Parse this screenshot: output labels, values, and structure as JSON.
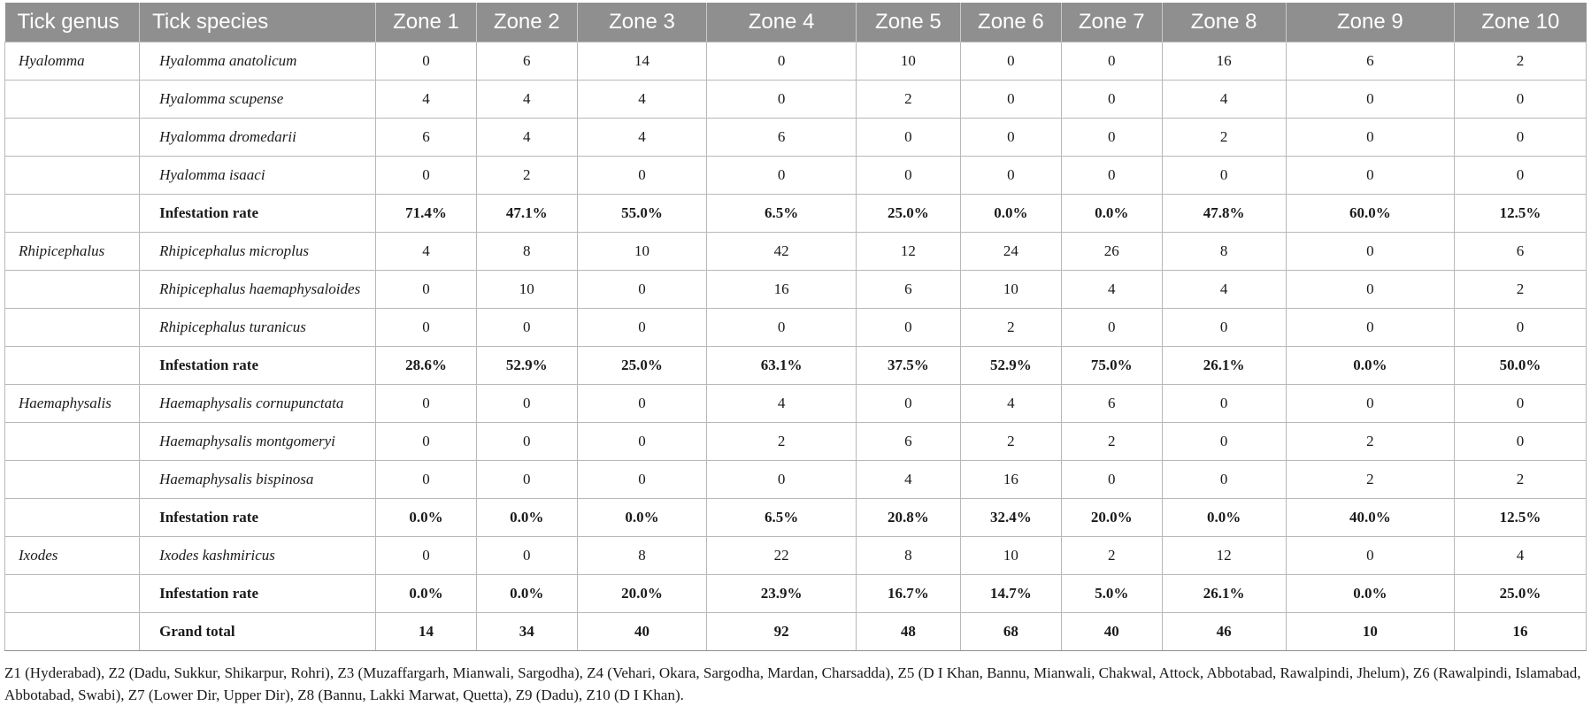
{
  "table": {
    "header": [
      "Tick genus",
      "Tick species",
      "Zone 1",
      "Zone 2",
      "Zone 3",
      "Zone 4",
      "Zone 5",
      "Zone 6",
      "Zone 7",
      "Zone 8",
      "Zone 9",
      "Zone 10"
    ],
    "rows": [
      {
        "genus": "Hyalomma",
        "species": "Hyalomma anatolicum",
        "type": "species",
        "values": [
          "0",
          "6",
          "14",
          "0",
          "10",
          "0",
          "0",
          "16",
          "6",
          "2"
        ]
      },
      {
        "genus": "",
        "species": "Hyalomma scupense",
        "type": "species",
        "values": [
          "4",
          "4",
          "4",
          "0",
          "2",
          "0",
          "0",
          "4",
          "0",
          "0"
        ]
      },
      {
        "genus": "",
        "species": "Hyalomma dromedarii",
        "type": "species",
        "values": [
          "6",
          "4",
          "4",
          "6",
          "0",
          "0",
          "0",
          "2",
          "0",
          "0"
        ]
      },
      {
        "genus": "",
        "species": "Hyalomma isaaci",
        "type": "species",
        "values": [
          "0",
          "2",
          "0",
          "0",
          "0",
          "0",
          "0",
          "0",
          "0",
          "0"
        ]
      },
      {
        "genus": "",
        "species": "Infestation rate",
        "type": "rate",
        "values": [
          "71.4%",
          "47.1%",
          "55.0%",
          "6.5%",
          "25.0%",
          "0.0%",
          "0.0%",
          "47.8%",
          "60.0%",
          "12.5%"
        ]
      },
      {
        "genus": "Rhipicephalus",
        "species": "Rhipicephalus microplus",
        "type": "species",
        "values": [
          "4",
          "8",
          "10",
          "42",
          "12",
          "24",
          "26",
          "8",
          "0",
          "6"
        ]
      },
      {
        "genus": "",
        "species": "Rhipicephalus haemaphysaloides",
        "type": "species",
        "values": [
          "0",
          "10",
          "0",
          "16",
          "6",
          "10",
          "4",
          "4",
          "0",
          "2"
        ]
      },
      {
        "genus": "",
        "species": "Rhipicephalus turanicus",
        "type": "species",
        "values": [
          "0",
          "0",
          "0",
          "0",
          "0",
          "2",
          "0",
          "0",
          "0",
          "0"
        ]
      },
      {
        "genus": "",
        "species": "Infestation rate",
        "type": "rate",
        "values": [
          "28.6%",
          "52.9%",
          "25.0%",
          "63.1%",
          "37.5%",
          "52.9%",
          "75.0%",
          "26.1%",
          "0.0%",
          "50.0%"
        ]
      },
      {
        "genus": "Haemaphysalis",
        "species": "Haemaphysalis cornupunctata",
        "type": "species",
        "values": [
          "0",
          "0",
          "0",
          "4",
          "0",
          "4",
          "6",
          "0",
          "0",
          "0"
        ]
      },
      {
        "genus": "",
        "species": "Haemaphysalis montgomeryi",
        "type": "species",
        "values": [
          "0",
          "0",
          "0",
          "2",
          "6",
          "2",
          "2",
          "0",
          "2",
          "0"
        ]
      },
      {
        "genus": "",
        "species": "Haemaphysalis bispinosa",
        "type": "species",
        "values": [
          "0",
          "0",
          "0",
          "0",
          "4",
          "16",
          "0",
          "0",
          "2",
          "2"
        ]
      },
      {
        "genus": "",
        "species": "Infestation rate",
        "type": "rate",
        "values": [
          "0.0%",
          "0.0%",
          "0.0%",
          "6.5%",
          "20.8%",
          "32.4%",
          "20.0%",
          "0.0%",
          "40.0%",
          "12.5%"
        ]
      },
      {
        "genus": "Ixodes",
        "species": "Ixodes kashmiricus",
        "type": "species",
        "values": [
          "0",
          "0",
          "8",
          "22",
          "8",
          "10",
          "2",
          "12",
          "0",
          "4"
        ]
      },
      {
        "genus": "",
        "species": "Infestation rate",
        "type": "rate",
        "values": [
          "0.0%",
          "0.0%",
          "20.0%",
          "23.9%",
          "16.7%",
          "14.7%",
          "5.0%",
          "26.1%",
          "0.0%",
          "25.0%"
        ]
      },
      {
        "genus": "",
        "species": "Grand total",
        "type": "total",
        "values": [
          "14",
          "34",
          "40",
          "92",
          "48",
          "68",
          "40",
          "46",
          "10",
          "16"
        ]
      }
    ]
  },
  "footnote": "Z1 (Hyderabad), Z2 (Dadu, Sukkur, Shikarpur, Rohri), Z3 (Muzaffargarh, Mianwali, Sargodha), Z4 (Vehari, Okara, Sargodha, Mardan, Charsadda), Z5 (D I Khan, Bannu, Mianwali, Chakwal, Attock, Abbotabad, Rawalpindi, Jhelum), Z6 (Rawalpindi, Islamabad, Abbotabad, Swabi), Z7 (Lower Dir, Upper Dir), Z8 (Bannu, Lakki Marwat, Quetta), Z9 (Dadu), Z10 (D I Khan)."
}
